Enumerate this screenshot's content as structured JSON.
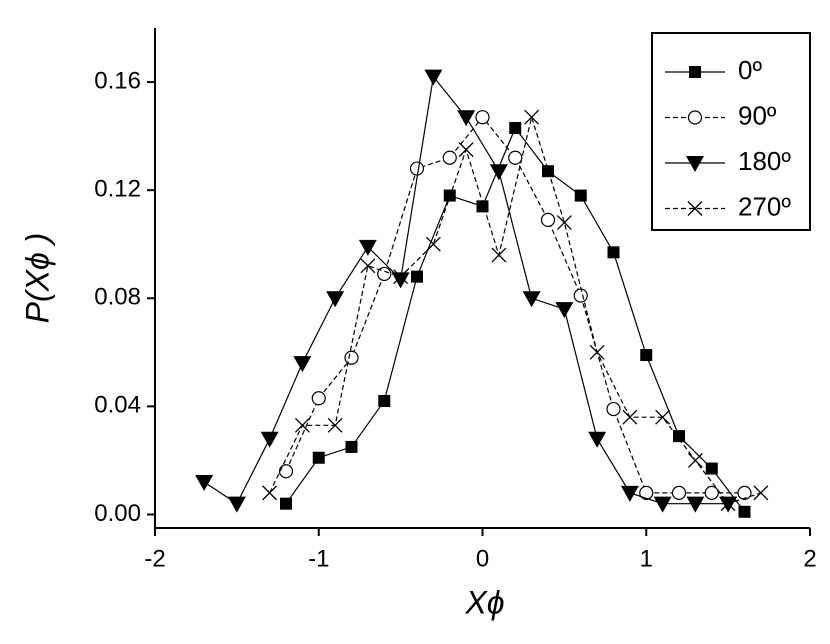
{
  "chart_data": {
    "type": "line",
    "x_label": "Xϕ",
    "y_label": "P(Xϕ )",
    "xlim": [
      -2,
      2
    ],
    "xticks": [
      -2,
      -1,
      0,
      1,
      2
    ],
    "ylim": [
      -0.005,
      0.18
    ],
    "yticks": [
      {
        "value": 0,
        "label": "0.00"
      },
      0.04,
      0.08,
      0.12,
      0.16
    ],
    "legend": "top-right",
    "series": [
      {
        "name": "0º",
        "color": "#000000",
        "marker": "square",
        "linestyle": "solid",
        "x": [
          -1.2,
          -1.0,
          -0.8,
          -0.6,
          -0.4,
          -0.2,
          0,
          0.2,
          0.4,
          0.6,
          0.8,
          1.0,
          1.2,
          1.4,
          1.6
        ],
        "values": [
          0.004,
          0.021,
          0.025,
          0.042,
          0.088,
          0.118,
          0.114,
          0.143,
          0.127,
          0.118,
          0.097,
          0.059,
          0.029,
          0.017,
          0.001
        ]
      },
      {
        "name": "90º",
        "color": "#000000",
        "marker": "circle",
        "linestyle": "dashed",
        "x": [
          -1.2,
          -1.0,
          -0.8,
          -0.6,
          -0.4,
          -0.2,
          0,
          0.2,
          0.4,
          0.6,
          0.8,
          1.0,
          1.2,
          1.4,
          1.6
        ],
        "values": [
          0.016,
          0.043,
          0.058,
          0.089,
          0.128,
          0.132,
          0.147,
          0.132,
          0.109,
          0.081,
          0.039,
          0.008,
          0.008,
          0.008,
          0.008
        ]
      },
      {
        "name": "180º",
        "color": "#000000",
        "marker": "triangle-down",
        "linestyle": "solid",
        "x": [
          -1.7,
          -1.5,
          -1.3,
          -1.1,
          -0.9,
          -0.7,
          -0.5,
          -0.3,
          -0.1,
          0.1,
          0.3,
          0.5,
          0.7,
          0.9,
          1.1,
          1.3,
          1.5
        ],
        "values": [
          0.012,
          0.004,
          0.028,
          0.056,
          0.08,
          0.099,
          0.087,
          0.162,
          0.147,
          0.127,
          0.08,
          0.076,
          0.028,
          0.008,
          0.004,
          0.004,
          0.004
        ]
      },
      {
        "name": "270º",
        "color": "#000000",
        "marker": "cross",
        "linestyle": "dashed",
        "x": [
          -1.3,
          -1.1,
          -0.9,
          -0.7,
          -0.5,
          -0.3,
          -0.1,
          0.1,
          0.3,
          0.5,
          0.7,
          0.9,
          1.1,
          1.3,
          1.5,
          1.7
        ],
        "values": [
          0.008,
          0.033,
          0.033,
          0.092,
          0.088,
          0.1,
          0.135,
          0.096,
          0.147,
          0.108,
          0.06,
          0.036,
          0.036,
          0.02,
          0.004,
          0.008
        ]
      }
    ]
  }
}
